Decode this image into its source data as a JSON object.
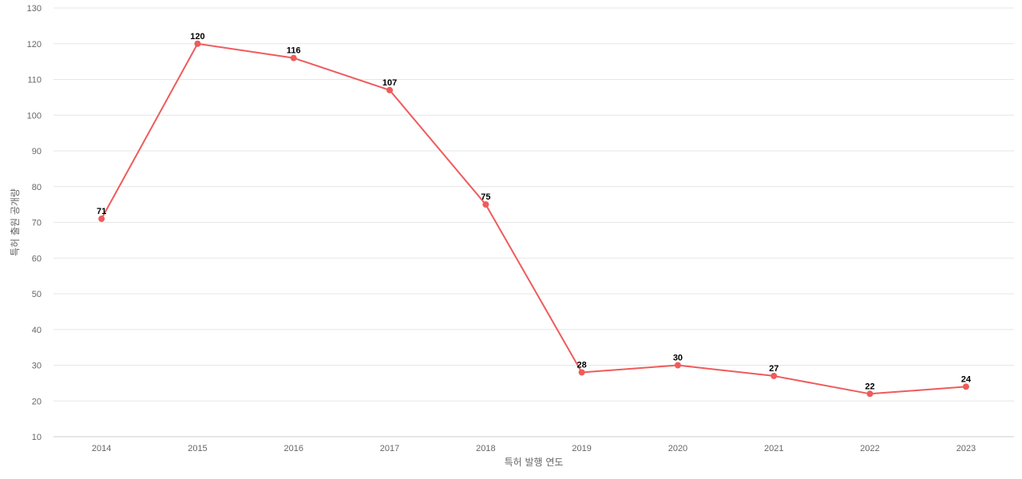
{
  "chart_data": {
    "type": "line",
    "x": [
      "2014",
      "2015",
      "2016",
      "2017",
      "2018",
      "2019",
      "2020",
      "2021",
      "2022",
      "2023"
    ],
    "series": [
      {
        "values": [
          71,
          120,
          116,
          107,
          75,
          28,
          30,
          27,
          22,
          24
        ],
        "color": "#ef5b5b"
      }
    ],
    "xlabel": "특허 발행 연도",
    "ylabel": "특허 출원 공개량",
    "ylim": [
      10,
      130
    ],
    "yticks": [
      10,
      20,
      30,
      40,
      50,
      60,
      70,
      80,
      90,
      100,
      110,
      120,
      130
    ],
    "grid": true,
    "data_labels": true
  }
}
